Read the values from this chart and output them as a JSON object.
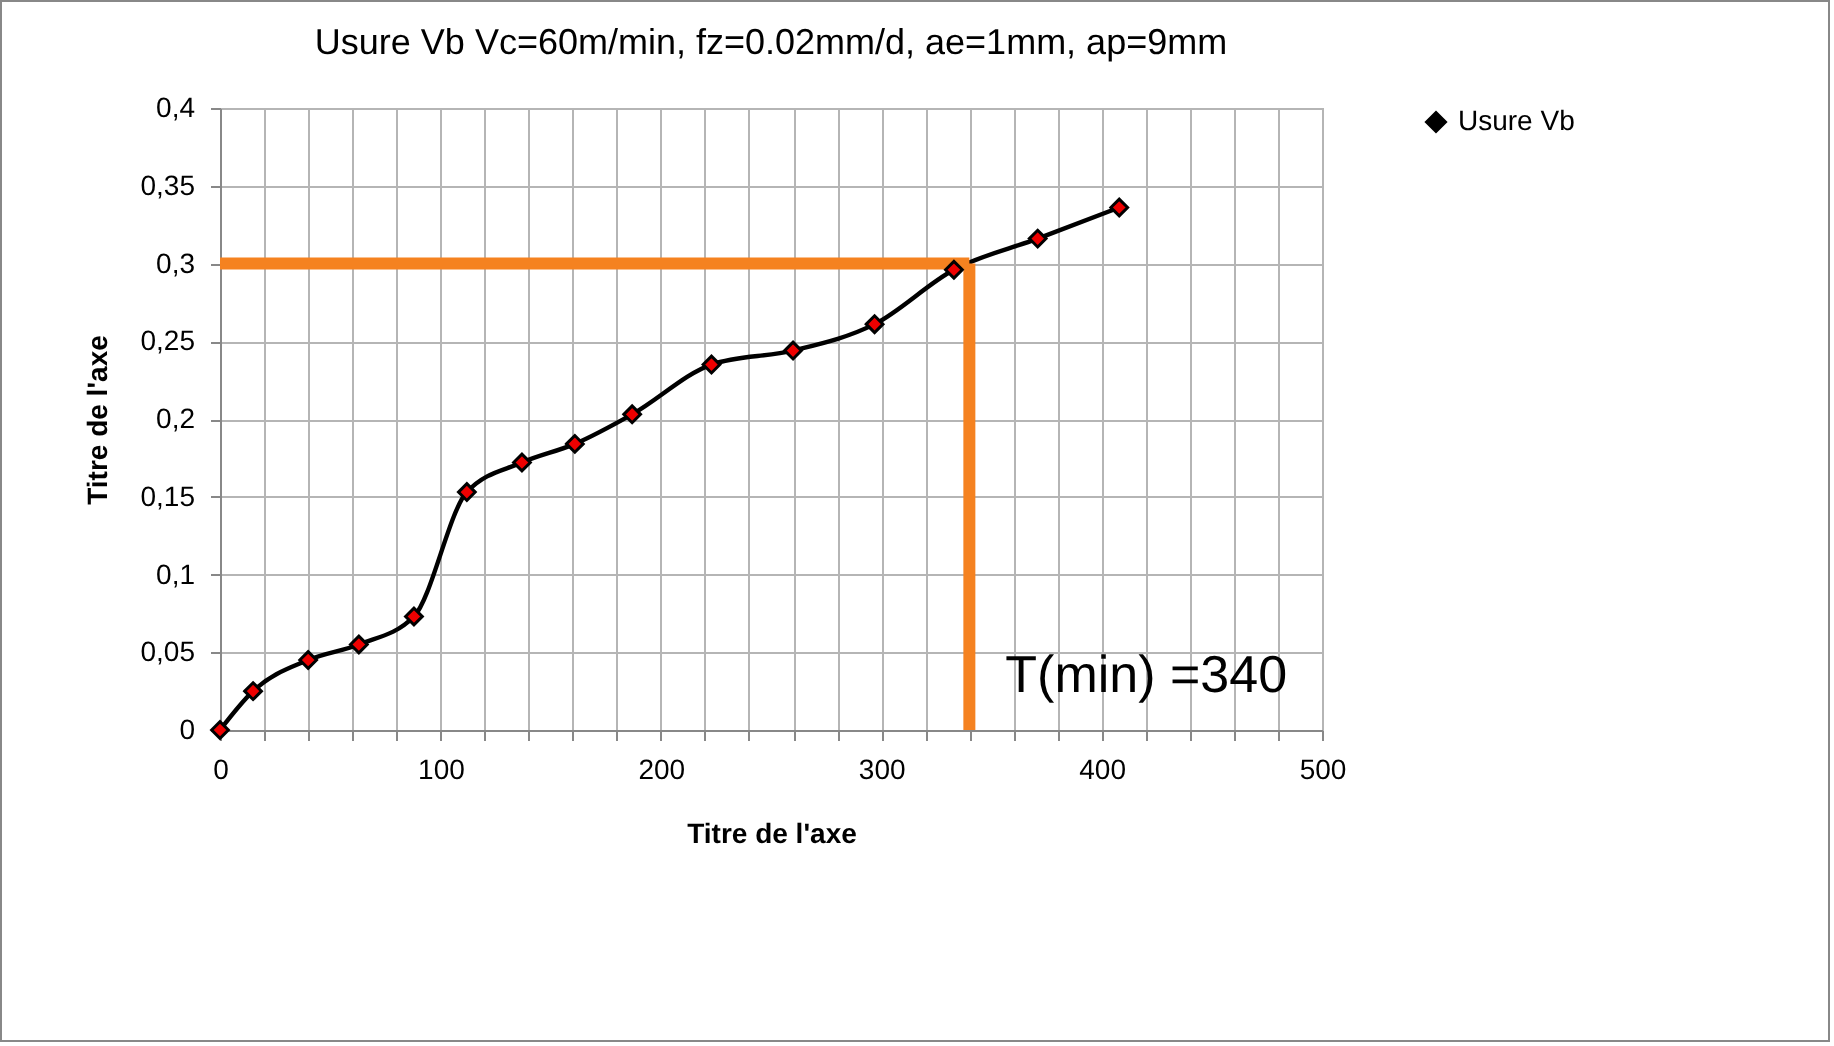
{
  "chart_data": {
    "type": "line",
    "title": "Usure Vb Vc=60m/min, fz=0.02mm/d, ae=1mm, ap=9mm",
    "xlabel": "Titre de l'axe",
    "ylabel": "Titre de l'axe",
    "series": [
      {
        "name": "Usure Vb",
        "color": "#000000",
        "x": [
          0,
          15,
          40,
          63,
          88,
          112,
          137,
          161,
          187,
          223,
          260,
          297,
          333,
          371,
          408
        ],
        "values": [
          0,
          0.025,
          0.045,
          0.055,
          0.073,
          0.153,
          0.172,
          0.184,
          0.203,
          0.235,
          0.244,
          0.261,
          0.296,
          0.316,
          0.336
        ]
      }
    ],
    "xlim": [
      0,
      500
    ],
    "xticks": [
      0,
      {
        "value": 20,
        "label": null
      },
      {
        "value": 40,
        "label": null
      },
      {
        "value": 60,
        "label": null
      },
      {
        "value": 80,
        "label": null
      },
      100,
      {
        "value": 120,
        "label": null
      },
      {
        "value": 140,
        "label": null
      },
      {
        "value": 160,
        "label": null
      },
      {
        "value": 180,
        "label": null
      },
      200,
      {
        "value": 220,
        "label": null
      },
      {
        "value": 240,
        "label": null
      },
      {
        "value": 260,
        "label": null
      },
      {
        "value": 280,
        "label": null
      },
      300,
      {
        "value": 320,
        "label": null
      },
      {
        "value": 340,
        "label": null
      },
      {
        "value": 360,
        "label": null
      },
      {
        "value": 380,
        "label": null
      },
      400,
      {
        "value": 420,
        "label": null
      },
      {
        "value": 440,
        "label": null
      },
      {
        "value": 460,
        "label": null
      },
      {
        "value": 480,
        "label": null
      },
      500
    ],
    "ylim": [
      0,
      0.4
    ],
    "yticks": [
      0,
      {
        "value": 0.05,
        "label": "0,05"
      },
      {
        "value": 0.1,
        "label": "0,1"
      },
      {
        "value": 0.15,
        "label": "0,15"
      },
      {
        "value": 0.2,
        "label": "0,2"
      },
      {
        "value": 0.25,
        "label": "0,25"
      },
      {
        "value": 0.3,
        "label": "0,3"
      },
      {
        "value": 0.35,
        "label": "0,35"
      },
      {
        "value": 0.4,
        "label": "0,4"
      }
    ],
    "ref_lines": [
      {
        "axis": "y",
        "value": 0.3,
        "color": "#f58220"
      },
      {
        "axis": "x",
        "value": 340,
        "label": "T(min) =340",
        "color": "#f58220"
      }
    ],
    "grid": true,
    "legend": "right",
    "marker": "diamond",
    "line_style": "solid"
  }
}
